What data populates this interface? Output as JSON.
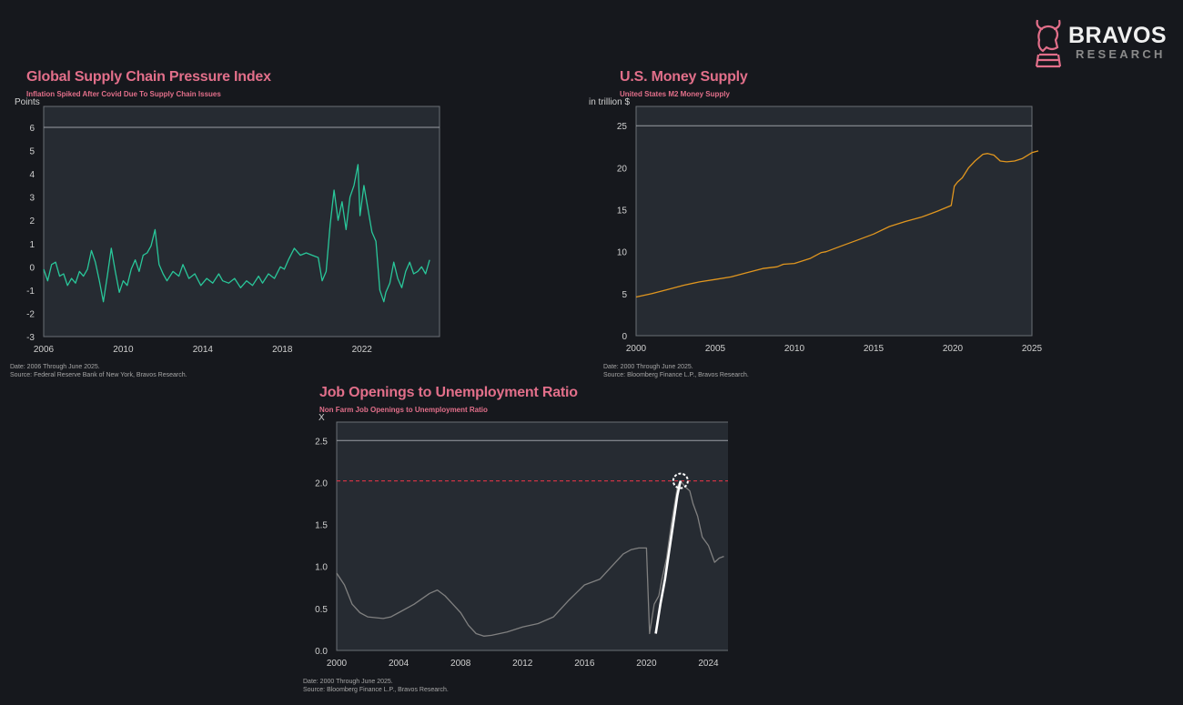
{
  "brand": {
    "name": "BRAVOS",
    "tagline": "RESEARCH",
    "accent": "#e26f8a"
  },
  "colors": {
    "background": "#16181d",
    "plot_bg": "#262b32",
    "title": "#e26f8a",
    "supply_chain_line": "#29c79a",
    "money_supply_line": "#e0961f",
    "job_ratio_line": "#808080",
    "job_ratio_highlight": "#ffffff",
    "reference_line": "#cc3344"
  },
  "chart_data": [
    {
      "id": "supply_chain",
      "type": "line",
      "title": "Global Supply Chain Pressure Index",
      "subtitle": "Inflation Spiked After Covid Due To Supply Chain Issues",
      "ylabel": "Points",
      "xlim": [
        2006,
        2025.9
      ],
      "ylim": [
        -3,
        6.9
      ],
      "xticks": [
        2006,
        2010,
        2014,
        2018,
        2022
      ],
      "yticks": [
        6,
        5,
        4,
        3,
        2,
        1,
        0,
        -1,
        -2,
        -3
      ],
      "top_rule": 6.0,
      "footnote": [
        "Date: 2006 Through June 2025.",
        "Source: Federal Reserve Bank of New York, Bravos Research."
      ],
      "series": [
        {
          "x": [
            2006,
            2006.2,
            2006.4,
            2006.6,
            2006.8,
            2007,
            2007.2,
            2007.4,
            2007.6,
            2007.8,
            2008,
            2008.2,
            2008.4,
            2008.6,
            2008.8,
            2009,
            2009.2,
            2009.4,
            2009.6,
            2009.8,
            2010,
            2010.2,
            2010.4,
            2010.6,
            2010.8,
            2011,
            2011.2,
            2011.4,
            2011.6,
            2011.8,
            2012,
            2012.2,
            2012.5,
            2012.8,
            2013,
            2013.3,
            2013.6,
            2013.9,
            2014.2,
            2014.5,
            2014.8,
            2015,
            2015.3,
            2015.6,
            2015.9,
            2016.2,
            2016.5,
            2016.8,
            2017,
            2017.3,
            2017.6,
            2017.9,
            2018.1,
            2018.3,
            2018.6,
            2018.9,
            2019.2,
            2019.5,
            2019.8,
            2020,
            2020.2,
            2020.4,
            2020.6,
            2020.8,
            2021,
            2021.2,
            2021.4,
            2021.6,
            2021.8,
            2021.9,
            2022.1,
            2022.3,
            2022.5,
            2022.7,
            2022.9,
            2023.1,
            2023.2,
            2023.4,
            2023.6,
            2023.8,
            2024,
            2024.2,
            2024.4,
            2024.6,
            2024.8,
            2025,
            2025.2,
            2025.4
          ],
          "y": [
            -0.1,
            -0.6,
            0.1,
            0.2,
            -0.4,
            -0.3,
            -0.8,
            -0.5,
            -0.7,
            -0.2,
            -0.4,
            -0.1,
            0.7,
            0.2,
            -0.6,
            -1.5,
            -0.4,
            0.8,
            -0.2,
            -1.1,
            -0.6,
            -0.8,
            -0.1,
            0.3,
            -0.2,
            0.5,
            0.6,
            0.9,
            1.6,
            0.1,
            -0.3,
            -0.6,
            -0.2,
            -0.4,
            0.1,
            -0.5,
            -0.3,
            -0.8,
            -0.5,
            -0.7,
            -0.3,
            -0.6,
            -0.7,
            -0.5,
            -0.9,
            -0.6,
            -0.8,
            -0.4,
            -0.7,
            -0.3,
            -0.5,
            0.0,
            -0.1,
            0.3,
            0.8,
            0.5,
            0.6,
            0.5,
            0.4,
            -0.6,
            -0.2,
            1.8,
            3.3,
            2.0,
            2.8,
            1.6,
            3.0,
            3.5,
            4.4,
            2.2,
            3.5,
            2.5,
            1.5,
            1.1,
            -1.0,
            -1.5,
            -1.1,
            -0.7,
            0.2,
            -0.5,
            -0.9,
            -0.2,
            0.2,
            -0.3,
            -0.2,
            0.0,
            -0.3,
            0.3
          ]
        }
      ]
    },
    {
      "id": "money_supply",
      "type": "line",
      "title": "U.S. Money Supply",
      "subtitle": "United States M2 Money Supply",
      "ylabel": "in trillion $",
      "xlim": [
        2000,
        2025
      ],
      "ylim": [
        0,
        27.3
      ],
      "xticks": [
        2000,
        2005,
        2010,
        2015,
        2020,
        2025
      ],
      "yticks": [
        25,
        20,
        15,
        10,
        5,
        0
      ],
      "top_rule": 25,
      "footnote": [
        "Date: 2000 Through June 2025.",
        "Source: Bloomberg Finance L.P., Bravos Research."
      ],
      "series": [
        {
          "x": [
            2000,
            2001,
            2002,
            2003,
            2004,
            2005,
            2006,
            2007,
            2008,
            2008.9,
            2009.3,
            2010,
            2011,
            2011.7,
            2012,
            2013,
            2014,
            2015,
            2016,
            2017,
            2018,
            2019,
            2019.9,
            2020.1,
            2020.3,
            2020.6,
            2021,
            2021.4,
            2021.9,
            2022.2,
            2022.6,
            2023,
            2023.4,
            2023.9,
            2024.4,
            2025,
            2025.4
          ],
          "y": [
            4.6,
            5.0,
            5.5,
            6.0,
            6.4,
            6.7,
            7.0,
            7.5,
            8.0,
            8.2,
            8.5,
            8.6,
            9.2,
            9.9,
            10.0,
            10.7,
            11.4,
            12.1,
            13.0,
            13.6,
            14.1,
            14.8,
            15.5,
            17.8,
            18.3,
            18.8,
            20.0,
            20.8,
            21.6,
            21.7,
            21.5,
            20.8,
            20.7,
            20.8,
            21.1,
            21.8,
            22.0
          ]
        }
      ]
    },
    {
      "id": "job_ratio",
      "type": "line",
      "title": "Job Openings to Unemployment Ratio",
      "subtitle": "Non Farm Job Openings to Unemployment Ratio",
      "ylabel": "X",
      "xlim": [
        2000,
        2025.5
      ],
      "ylim": [
        0,
        2.72
      ],
      "xticks": [
        2000,
        2004,
        2008,
        2012,
        2016,
        2020,
        2024
      ],
      "ytick_labels": [
        "2.5",
        "2.0",
        "1.5",
        "1.0",
        "0.5",
        "0.0"
      ],
      "yticks": [
        2.5,
        2.0,
        1.5,
        1.0,
        0.5,
        0.0
      ],
      "top_rule": 2.5,
      "reference_line": 2.02,
      "highlight_peak": {
        "x": 2022.2,
        "y": 2.02
      },
      "footnote": [
        "Date: 2000 Through June 2025.",
        "Source: Bloomberg Finance L.P., Bravos Research."
      ],
      "series": [
        {
          "name": "",
          "x": [
            2000,
            2000.5,
            2001,
            2001.5,
            2002,
            2003,
            2003.5,
            2004,
            2005,
            2006,
            2006.5,
            2007,
            2007.5,
            2008,
            2008.5,
            2009,
            2009.5,
            2010,
            2011,
            2012,
            2013,
            2014,
            2015,
            2016,
            2017,
            2018,
            2018.5,
            2019,
            2019.5,
            2020,
            2020.2,
            2020.5,
            2020.8,
            2021,
            2021.3,
            2021.6,
            2022,
            2022.2,
            2022.5,
            2022.8,
            2023,
            2023.3,
            2023.6,
            2024,
            2024.4,
            2024.7,
            2025
          ],
          "y": [
            0.92,
            0.78,
            0.55,
            0.45,
            0.4,
            0.38,
            0.4,
            0.45,
            0.55,
            0.68,
            0.72,
            0.65,
            0.55,
            0.45,
            0.3,
            0.2,
            0.17,
            0.18,
            0.22,
            0.28,
            0.32,
            0.4,
            0.6,
            0.78,
            0.85,
            1.05,
            1.15,
            1.2,
            1.22,
            1.22,
            0.2,
            0.55,
            0.65,
            0.85,
            1.1,
            1.5,
            1.95,
            2.02,
            1.95,
            1.9,
            1.75,
            1.6,
            1.35,
            1.25,
            1.05,
            1.1,
            1.12
          ]
        },
        {
          "name": "",
          "x": [
            2020.6,
            2020.9,
            2021.2,
            2021.6,
            2022,
            2022.2
          ],
          "y": [
            0.2,
            0.55,
            0.85,
            1.35,
            1.85,
            2.02
          ]
        }
      ]
    }
  ]
}
